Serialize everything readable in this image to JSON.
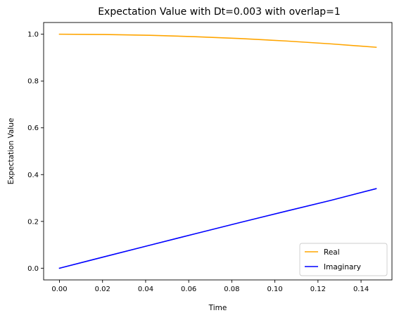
{
  "chart_data": {
    "type": "line",
    "title": "Expectation Value with Dt=0.003 with overlap=1",
    "xlabel": "Time",
    "ylabel": "Expectation Value",
    "xlim": [
      -0.00735,
      0.15435
    ],
    "ylim": [
      -0.05,
      1.05
    ],
    "xticks": [
      0.0,
      0.02,
      0.04,
      0.06,
      0.08,
      0.1,
      0.12,
      0.14
    ],
    "xtick_labels": [
      "0.00",
      "0.02",
      "0.04",
      "0.06",
      "0.08",
      "0.10",
      "0.12",
      "0.14"
    ],
    "yticks": [
      0.0,
      0.2,
      0.4,
      0.6,
      0.8,
      1.0
    ],
    "ytick_labels": [
      "0.0",
      "0.2",
      "0.4",
      "0.6",
      "0.8",
      "1.0"
    ],
    "grid": false,
    "legend_position": "lower-right",
    "x": [
      0.0,
      0.021,
      0.042,
      0.063,
      0.084,
      0.105,
      0.126,
      0.147
    ],
    "series": [
      {
        "name": "Real",
        "color": "#ffa500",
        "values": [
          1.0,
          0.9988,
          0.9953,
          0.9894,
          0.9813,
          0.9711,
          0.9587,
          0.9442
        ]
      },
      {
        "name": "Imaginary",
        "color": "#0000ff",
        "values": [
          0.0,
          0.0494,
          0.0985,
          0.1473,
          0.1956,
          0.2432,
          0.2901,
          0.34
        ]
      }
    ]
  }
}
